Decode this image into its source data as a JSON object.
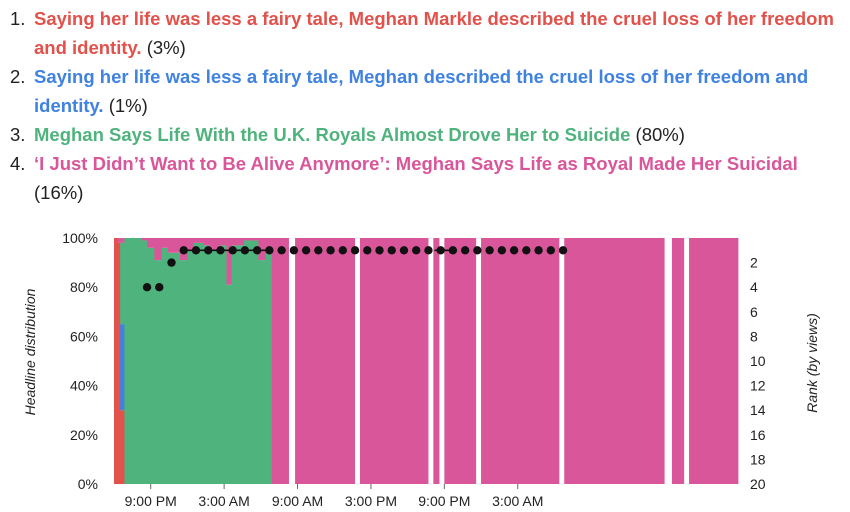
{
  "headlines": [
    {
      "num": "1.",
      "text": "Saying her life was less a fairy tale, Meghan Markle described the cruel loss of her freedom and identity.",
      "share": "(3%)",
      "color": "#e2514a"
    },
    {
      "num": "2.",
      "text": "Saying her life was less a fairy tale, Meghan described the cruel loss of her freedom and identity.",
      "share": "(1%)",
      "color": "#3f82e0"
    },
    {
      "num": "3.",
      "text": "Meghan Says Life With the U.K. Royals Almost Drove Her to Suicide",
      "share": "(80%)",
      "color": "#4fb37d"
    },
    {
      "num": "4.",
      "text": "‘I Just Didn’t Want to Be Alive Anymore’: Meghan Says Life as Royal Made Her Suicidal",
      "share": "(16%)",
      "color": "#d9569a"
    }
  ],
  "chart_data": {
    "type": "area",
    "ylabel_left": "Headline distribution",
    "ylabel_right": "Rank (by views)",
    "yticks_left": [
      "100%",
      "80%",
      "60%",
      "40%",
      "20%",
      "0%"
    ],
    "yticks_right": [
      "2",
      "4",
      "6",
      "8",
      "10",
      "12",
      "14",
      "16",
      "18",
      "20"
    ],
    "yrange_left": [
      0,
      100
    ],
    "yrange_right": [
      0,
      20
    ],
    "x_range_hours": [
      0,
      51
    ],
    "xticks": [
      {
        "hour": 3,
        "label": "9:00 PM"
      },
      {
        "hour": 9,
        "label": "3:00 AM"
      },
      {
        "hour": 15,
        "label": "9:00 AM"
      },
      {
        "hour": 21,
        "label": "3:00 PM"
      },
      {
        "hour": 27,
        "label": "9:00 PM"
      },
      {
        "hour": 33,
        "label": "3:00 AM"
      }
    ],
    "series_order": [
      "headline_1",
      "headline_2",
      "headline_3",
      "headline_4"
    ],
    "intervals": [
      {
        "start": 0.0,
        "end": 0.3,
        "values": [
          100,
          0,
          0,
          0
        ]
      },
      {
        "start": 0.3,
        "end": 0.5,
        "values": [
          98,
          0,
          0,
          2
        ]
      },
      {
        "start": 0.5,
        "end": 0.85,
        "values": [
          30,
          35,
          33,
          2
        ]
      },
      {
        "start": 0.85,
        "end": 2.3,
        "values": [
          0,
          0,
          100,
          0
        ]
      },
      {
        "start": 2.3,
        "end": 2.7,
        "values": [
          0,
          0,
          99,
          1
        ]
      },
      {
        "start": 2.7,
        "end": 3.3,
        "values": [
          0,
          0,
          96,
          4
        ]
      },
      {
        "start": 3.3,
        "end": 3.9,
        "values": [
          0,
          0,
          91,
          9
        ]
      },
      {
        "start": 3.9,
        "end": 4.4,
        "values": [
          0,
          0,
          96,
          4
        ]
      },
      {
        "start": 4.4,
        "end": 5.4,
        "values": [
          0,
          0,
          94,
          6
        ]
      },
      {
        "start": 5.4,
        "end": 6.0,
        "values": [
          0,
          0,
          91,
          9
        ]
      },
      {
        "start": 6.0,
        "end": 6.5,
        "values": [
          0,
          0,
          95,
          5
        ]
      },
      {
        "start": 6.5,
        "end": 7.3,
        "values": [
          0,
          0,
          98,
          2
        ]
      },
      {
        "start": 7.3,
        "end": 7.8,
        "values": [
          0,
          0,
          97,
          3
        ]
      },
      {
        "start": 7.8,
        "end": 8.6,
        "values": [
          0,
          0,
          95,
          5
        ]
      },
      {
        "start": 8.6,
        "end": 9.2,
        "values": [
          0,
          0,
          97,
          3
        ]
      },
      {
        "start": 9.2,
        "end": 9.6,
        "values": [
          0,
          0,
          81,
          19
        ]
      },
      {
        "start": 9.6,
        "end": 10.6,
        "values": [
          0,
          0,
          97,
          3
        ]
      },
      {
        "start": 10.6,
        "end": 11.8,
        "values": [
          0,
          0,
          99,
          1
        ]
      },
      {
        "start": 11.8,
        "end": 12.4,
        "values": [
          0,
          0,
          91,
          9
        ]
      },
      {
        "start": 12.4,
        "end": 12.9,
        "values": [
          0,
          0,
          95,
          5
        ]
      },
      {
        "start": 12.9,
        "end": 51.0,
        "values": [
          0,
          0,
          0,
          100
        ]
      }
    ],
    "gaps": [
      {
        "start": 14.3,
        "end": 14.8
      },
      {
        "start": 19.7,
        "end": 20.1
      },
      {
        "start": 25.7,
        "end": 26.1
      },
      {
        "start": 26.6,
        "end": 27.0
      },
      {
        "start": 29.6,
        "end": 30.0
      },
      {
        "start": 36.4,
        "end": 36.8
      },
      {
        "start": 45.0,
        "end": 45.6
      },
      {
        "start": 46.6,
        "end": 47.0
      }
    ],
    "rank_points": [
      {
        "hour": 2.7,
        "rank": 4
      },
      {
        "hour": 3.7,
        "rank": 4
      },
      {
        "hour": 4.7,
        "rank": 2
      },
      {
        "hour": 5.7,
        "rank": 1
      },
      {
        "hour": 6.7,
        "rank": 1
      },
      {
        "hour": 7.7,
        "rank": 1
      },
      {
        "hour": 8.7,
        "rank": 1
      },
      {
        "hour": 9.7,
        "rank": 1
      },
      {
        "hour": 10.7,
        "rank": 1
      },
      {
        "hour": 11.7,
        "rank": 1
      },
      {
        "hour": 12.7,
        "rank": 1
      },
      {
        "hour": 13.7,
        "rank": 1
      },
      {
        "hour": 14.7,
        "rank": 1
      },
      {
        "hour": 15.7,
        "rank": 1
      },
      {
        "hour": 16.7,
        "rank": 1
      },
      {
        "hour": 17.7,
        "rank": 1
      },
      {
        "hour": 18.7,
        "rank": 1
      },
      {
        "hour": 19.7,
        "rank": 1
      },
      {
        "hour": 20.7,
        "rank": 1
      },
      {
        "hour": 21.7,
        "rank": 1
      },
      {
        "hour": 22.7,
        "rank": 1
      },
      {
        "hour": 23.7,
        "rank": 1
      },
      {
        "hour": 24.7,
        "rank": 1
      },
      {
        "hour": 25.7,
        "rank": 1
      },
      {
        "hour": 26.7,
        "rank": 1
      },
      {
        "hour": 27.7,
        "rank": 1
      },
      {
        "hour": 28.7,
        "rank": 1
      },
      {
        "hour": 29.7,
        "rank": 1
      },
      {
        "hour": 30.7,
        "rank": 1
      },
      {
        "hour": 31.7,
        "rank": 1
      },
      {
        "hour": 32.7,
        "rank": 1
      },
      {
        "hour": 33.7,
        "rank": 1
      },
      {
        "hour": 34.7,
        "rank": 1
      },
      {
        "hour": 35.7,
        "rank": 1
      },
      {
        "hour": 36.7,
        "rank": 1
      }
    ],
    "rank_connected_segments": [
      {
        "start": 5.7,
        "end": 12.4
      },
      {
        "start": 26.2,
        "end": 27.6
      }
    ]
  }
}
